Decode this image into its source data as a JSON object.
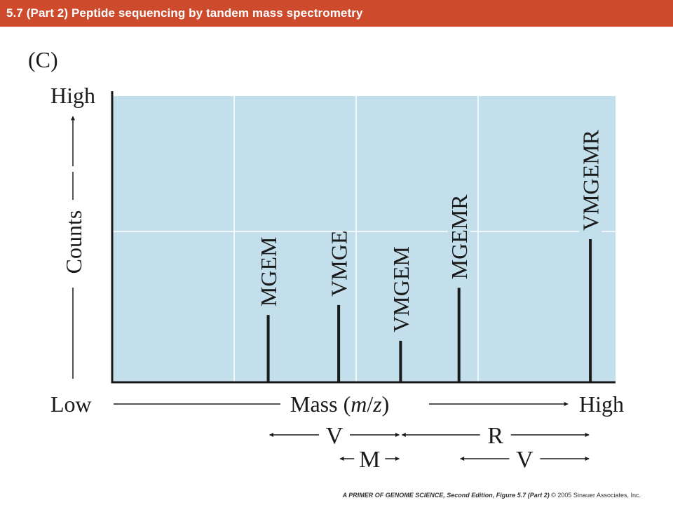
{
  "header": {
    "title": "5.7 (Part 2)  Peptide sequencing by tandem mass spectrometry",
    "bar_color": "#cd4a2d"
  },
  "figure": {
    "panel_label": "(C)"
  },
  "chart_data": {
    "type": "bar",
    "plot_background": "#c3dfec",
    "grid": true,
    "x_axis": {
      "low_label": "Low",
      "high_label": "High",
      "label_prefix": "Mass (",
      "label_m": "m",
      "label_sep": "/",
      "label_z": "z",
      "label_suffix": ")",
      "range": [
        0,
        100
      ]
    },
    "y_axis": {
      "low_label": "Low",
      "high_label": "High",
      "label": "Counts",
      "range": [
        0,
        100
      ]
    },
    "peaks": [
      {
        "label": "MGEM",
        "x": 31.0,
        "y": 23.5
      },
      {
        "label": "VMGE",
        "x": 45.0,
        "y": 27.0
      },
      {
        "label": "VMGEM",
        "x": 57.3,
        "y": 14.5
      },
      {
        "label": "MGEMR",
        "x": 68.9,
        "y": 33.0
      },
      {
        "label": "VMGEMR",
        "x": 95.0,
        "y": 50.0
      }
    ],
    "differences": [
      {
        "label": "V",
        "from": "MGEM",
        "to": "VMGEM"
      },
      {
        "label": "R",
        "from": "VMGEM",
        "to": "VMGEMR"
      },
      {
        "label": "M",
        "from": "VMGE",
        "to": "VMGEM"
      },
      {
        "label": "V",
        "from": "MGEMR",
        "to": "VMGEMR"
      }
    ]
  },
  "footer": {
    "book_title": "A PRIMER OF GENOME SCIENCE, Second Edition, Figure 5.7 (Part 2)",
    "copyright": "© 2005 Sinauer Associates, Inc."
  }
}
